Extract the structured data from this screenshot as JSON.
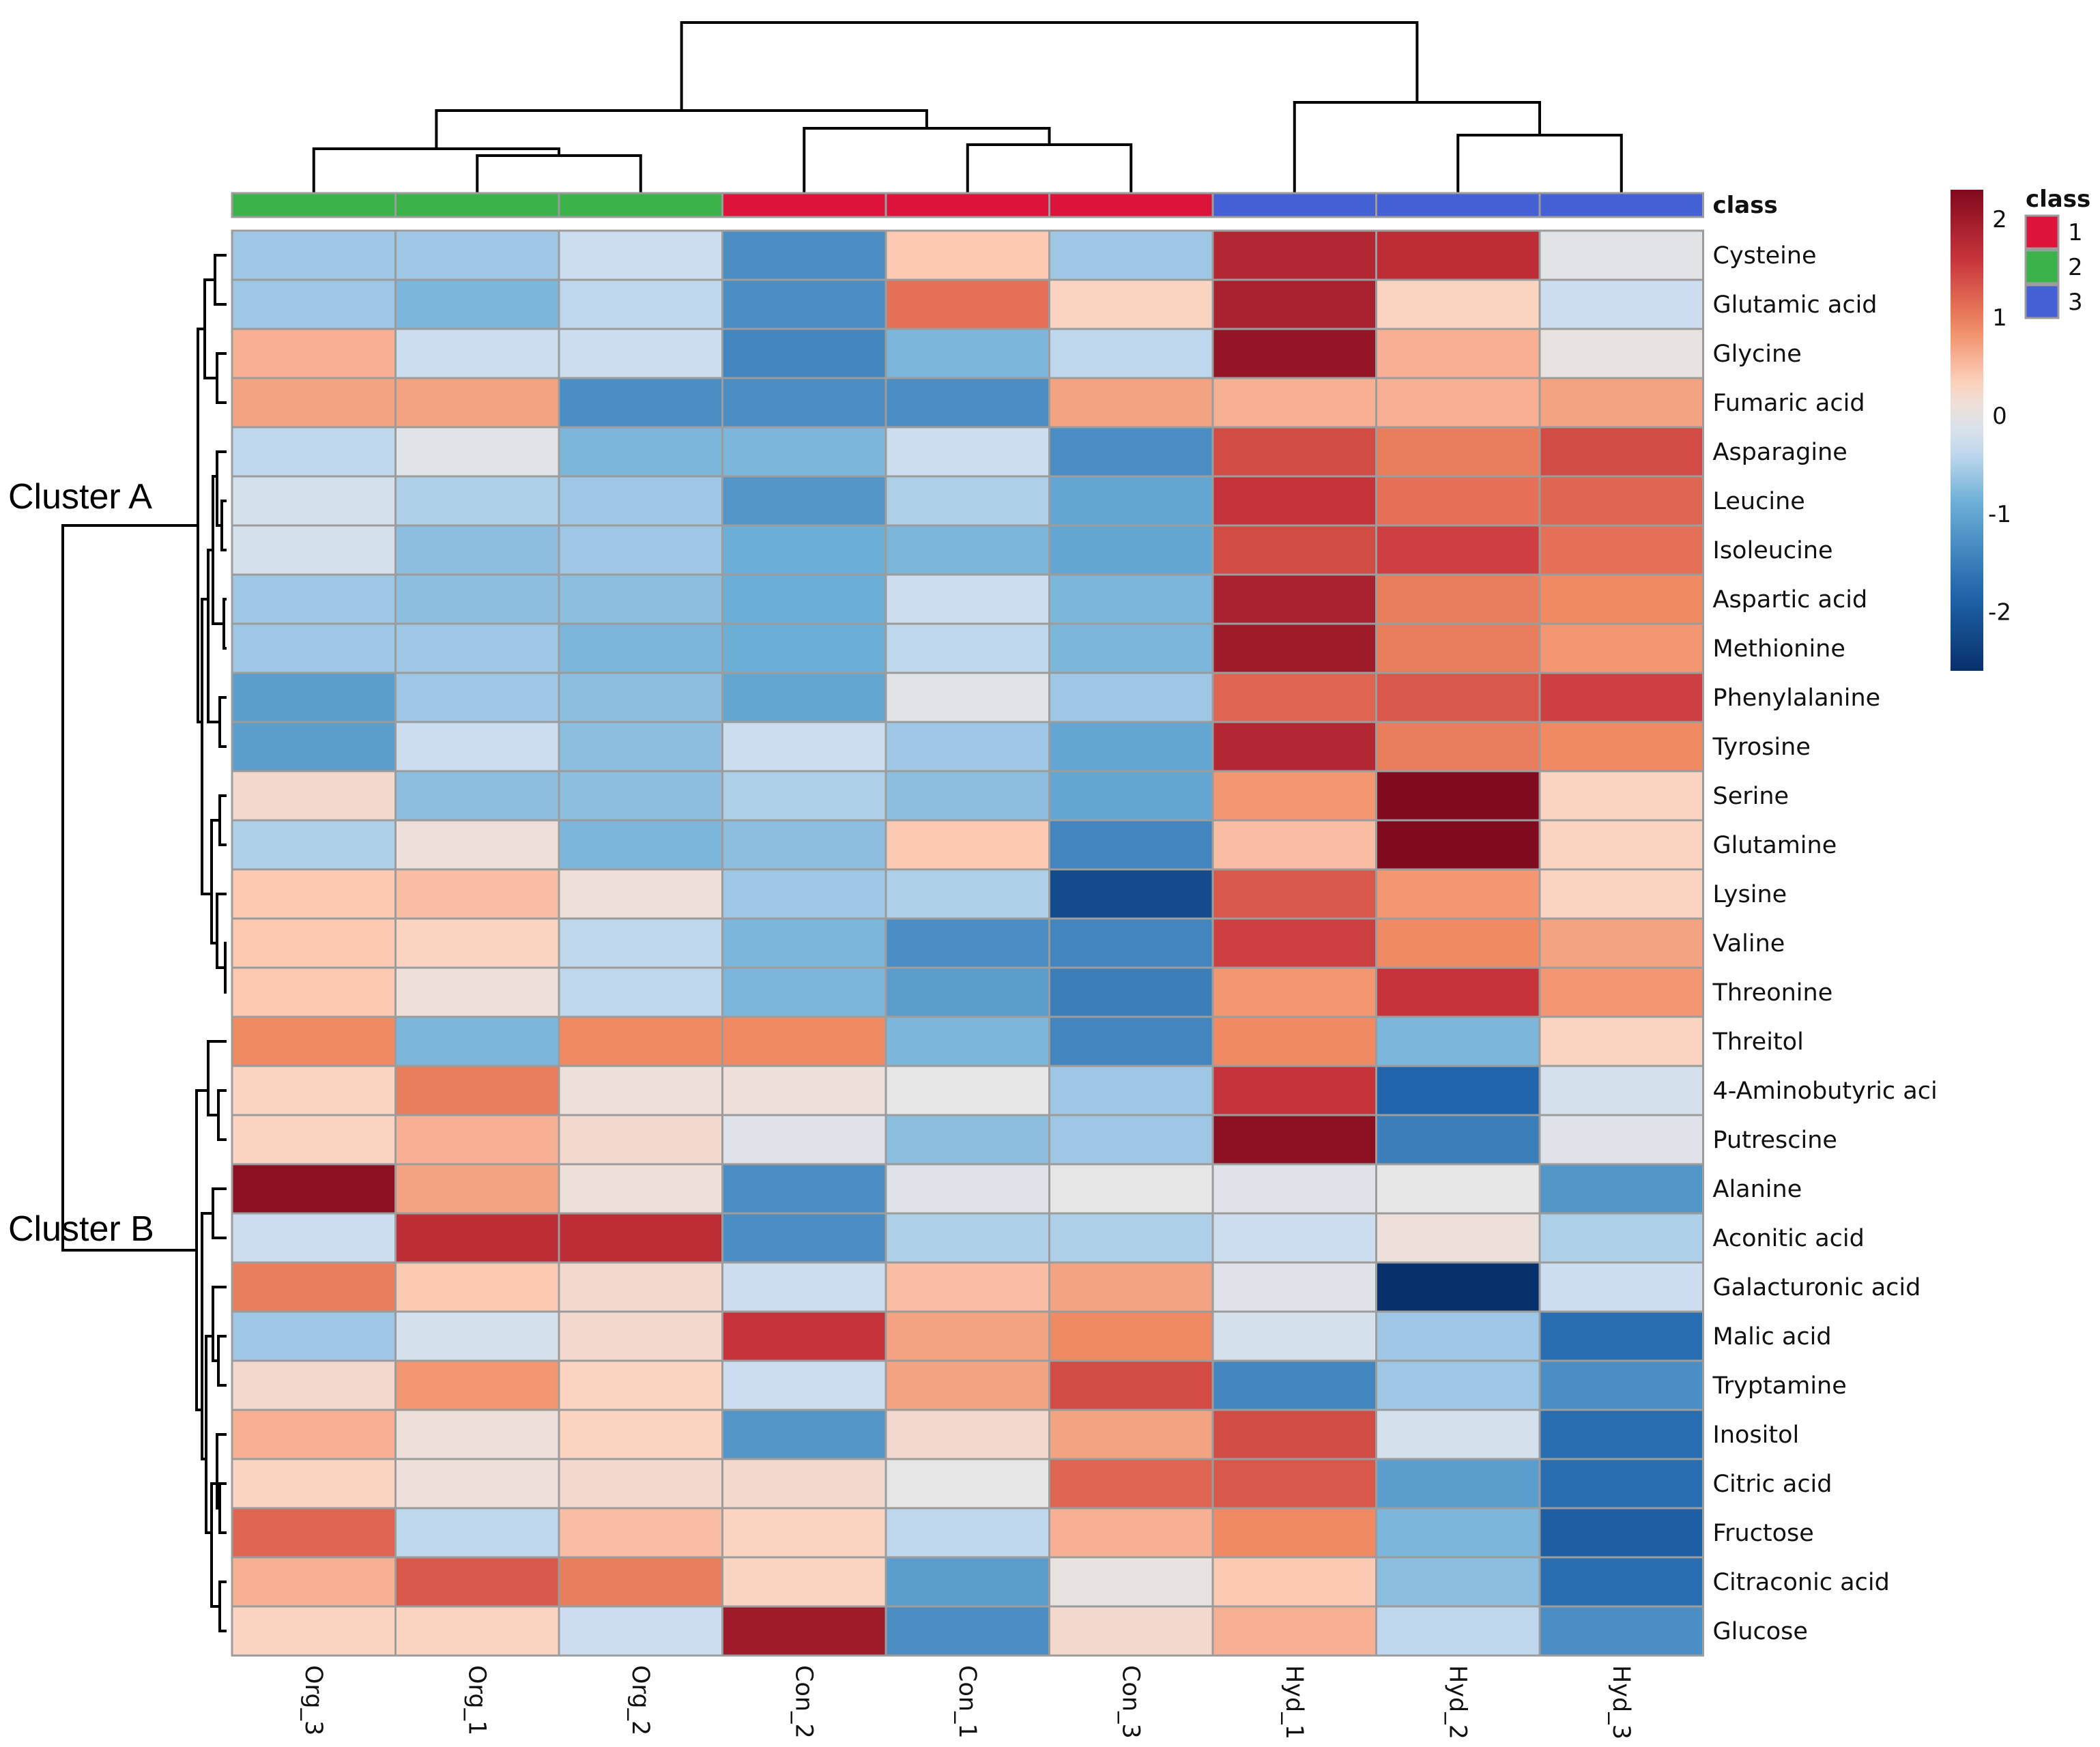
{
  "chart_data": {
    "type": "heatmap",
    "title": "",
    "columns": [
      "Org_3",
      "Org_1",
      "Org_2",
      "Con_2",
      "Con_1",
      "Con_3",
      "Hyd_1",
      "Hyd_2",
      "Hyd_3"
    ],
    "column_class": [
      2,
      2,
      2,
      1,
      1,
      1,
      3,
      3,
      3
    ],
    "class_annotation_label": "class",
    "rows": [
      "Cysteine",
      "Glutamic acid",
      "Glycine",
      "Fumaric acid",
      "Asparagine",
      "Leucine",
      "Isoleucine",
      "Aspartic acid",
      "Methionine",
      "Phenylalanine",
      "Tyrosine",
      "Serine",
      "Glutamine",
      "Lysine",
      "Valine",
      "Threonine",
      "Threitol",
      "4-Aminobutyric aci",
      "Putrescine",
      "Alanine",
      "Aconitic acid",
      "Galacturonic acid",
      "Malic acid",
      "Tryptamine",
      "Inositol",
      "Citric acid",
      "Fructose",
      "Citraconic acid",
      "Glucose"
    ],
    "values": [
      [
        -0.6,
        -0.6,
        -0.3,
        -1.3,
        0.4,
        -0.6,
        1.8,
        1.7,
        -0.05
      ],
      [
        -0.6,
        -0.8,
        -0.4,
        -1.3,
        1.1,
        0.3,
        1.9,
        0.3,
        -0.3
      ],
      [
        0.6,
        -0.3,
        -0.3,
        -1.4,
        -0.8,
        -0.4,
        2.1,
        0.6,
        0.05
      ],
      [
        0.7,
        0.7,
        -1.3,
        -1.3,
        -1.3,
        0.7,
        0.6,
        0.6,
        0.7
      ],
      [
        -0.4,
        -0.05,
        -0.8,
        -0.8,
        -0.3,
        -1.3,
        1.4,
        1.0,
        1.4
      ],
      [
        -0.2,
        -0.5,
        -0.6,
        -1.2,
        -0.5,
        -1.0,
        1.6,
        1.1,
        1.2
      ],
      [
        -0.2,
        -0.7,
        -0.6,
        -0.9,
        -0.8,
        -1.0,
        1.4,
        1.5,
        1.1
      ],
      [
        -0.6,
        -0.7,
        -0.7,
        -0.9,
        -0.3,
        -0.8,
        1.9,
        1.0,
        0.9
      ],
      [
        -0.6,
        -0.6,
        -0.8,
        -0.9,
        -0.4,
        -0.8,
        2.0,
        1.0,
        0.8
      ],
      [
        -1.1,
        -0.6,
        -0.7,
        -1.0,
        -0.05,
        -0.6,
        1.2,
        1.3,
        1.5
      ],
      [
        -1.1,
        -0.3,
        -0.7,
        -0.3,
        -0.6,
        -1.0,
        1.8,
        1.0,
        0.9
      ],
      [
        0.2,
        -0.7,
        -0.7,
        -0.5,
        -0.7,
        -1.0,
        0.8,
        2.3,
        0.3
      ],
      [
        -0.5,
        0.1,
        -0.8,
        -0.7,
        0.4,
        -1.4,
        0.5,
        2.3,
        0.3
      ],
      [
        0.4,
        0.5,
        0.1,
        -0.6,
        -0.5,
        -2.2,
        1.3,
        0.8,
        0.3
      ],
      [
        0.4,
        0.3,
        -0.4,
        -0.8,
        -1.3,
        -1.4,
        1.5,
        0.9,
        0.7
      ],
      [
        0.4,
        0.1,
        -0.4,
        -0.8,
        -1.1,
        -1.5,
        0.8,
        1.6,
        0.8
      ],
      [
        0.9,
        -0.8,
        0.9,
        0.9,
        -0.8,
        -1.4,
        0.9,
        -0.8,
        0.3
      ],
      [
        0.3,
        1.0,
        0.1,
        0.1,
        0.0,
        -0.6,
        1.6,
        -1.8,
        -0.2
      ],
      [
        0.3,
        0.6,
        0.2,
        -0.1,
        -0.7,
        -0.6,
        2.2,
        -1.5,
        -0.1
      ],
      [
        2.2,
        0.7,
        0.1,
        -1.3,
        -0.1,
        0.0,
        -0.1,
        0.0,
        -1.2
      ],
      [
        -0.3,
        1.7,
        1.7,
        -1.3,
        -0.5,
        -0.5,
        -0.3,
        0.1,
        -0.5
      ],
      [
        1.0,
        0.4,
        0.2,
        -0.3,
        0.5,
        0.7,
        -0.1,
        -2.6,
        -0.3
      ],
      [
        -0.6,
        -0.2,
        0.2,
        1.6,
        0.7,
        0.9,
        -0.2,
        -0.6,
        -1.7
      ],
      [
        0.2,
        0.8,
        0.3,
        -0.3,
        0.7,
        1.4,
        -1.4,
        -0.6,
        -1.3
      ],
      [
        0.6,
        0.1,
        0.3,
        -1.2,
        0.2,
        0.7,
        1.4,
        -0.2,
        -1.7
      ],
      [
        0.3,
        0.1,
        0.2,
        0.2,
        0.0,
        1.2,
        1.3,
        -1.1,
        -1.7
      ],
      [
        1.2,
        -0.4,
        0.5,
        0.3,
        -0.4,
        0.6,
        0.9,
        -0.8,
        -1.9
      ],
      [
        0.6,
        1.3,
        1.0,
        0.3,
        -1.1,
        0.05,
        0.4,
        -0.7,
        -1.7
      ],
      [
        0.3,
        0.3,
        -0.3,
        2.0,
        -1.3,
        0.2,
        0.6,
        -0.4,
        -1.3
      ]
    ],
    "row_clusters": [
      {
        "name": "Cluster A",
        "rows": [
          0,
          15
        ]
      },
      {
        "name": "Cluster B",
        "rows": [
          16,
          28
        ]
      }
    ],
    "colorbar": {
      "ticks": [
        2,
        1,
        0,
        -1,
        -2
      ],
      "range": [
        -2.6,
        2.3
      ],
      "low_color": "#08306b",
      "mid_color": "#e8e8e8",
      "high_color": "#800a1e"
    },
    "class_legend": {
      "title": "class",
      "items": [
        {
          "label": "1",
          "color": "#dc143c"
        },
        {
          "label": "2",
          "color": "#3cb34a"
        },
        {
          "label": "3",
          "color": "#4361d5"
        }
      ]
    },
    "column_dendrogram_order": "((Org_3,(Org_1,Org_2)),(Con_2,(Con_1,Con_3))),(Hyd_1,(Hyd_2,Hyd_3))"
  }
}
